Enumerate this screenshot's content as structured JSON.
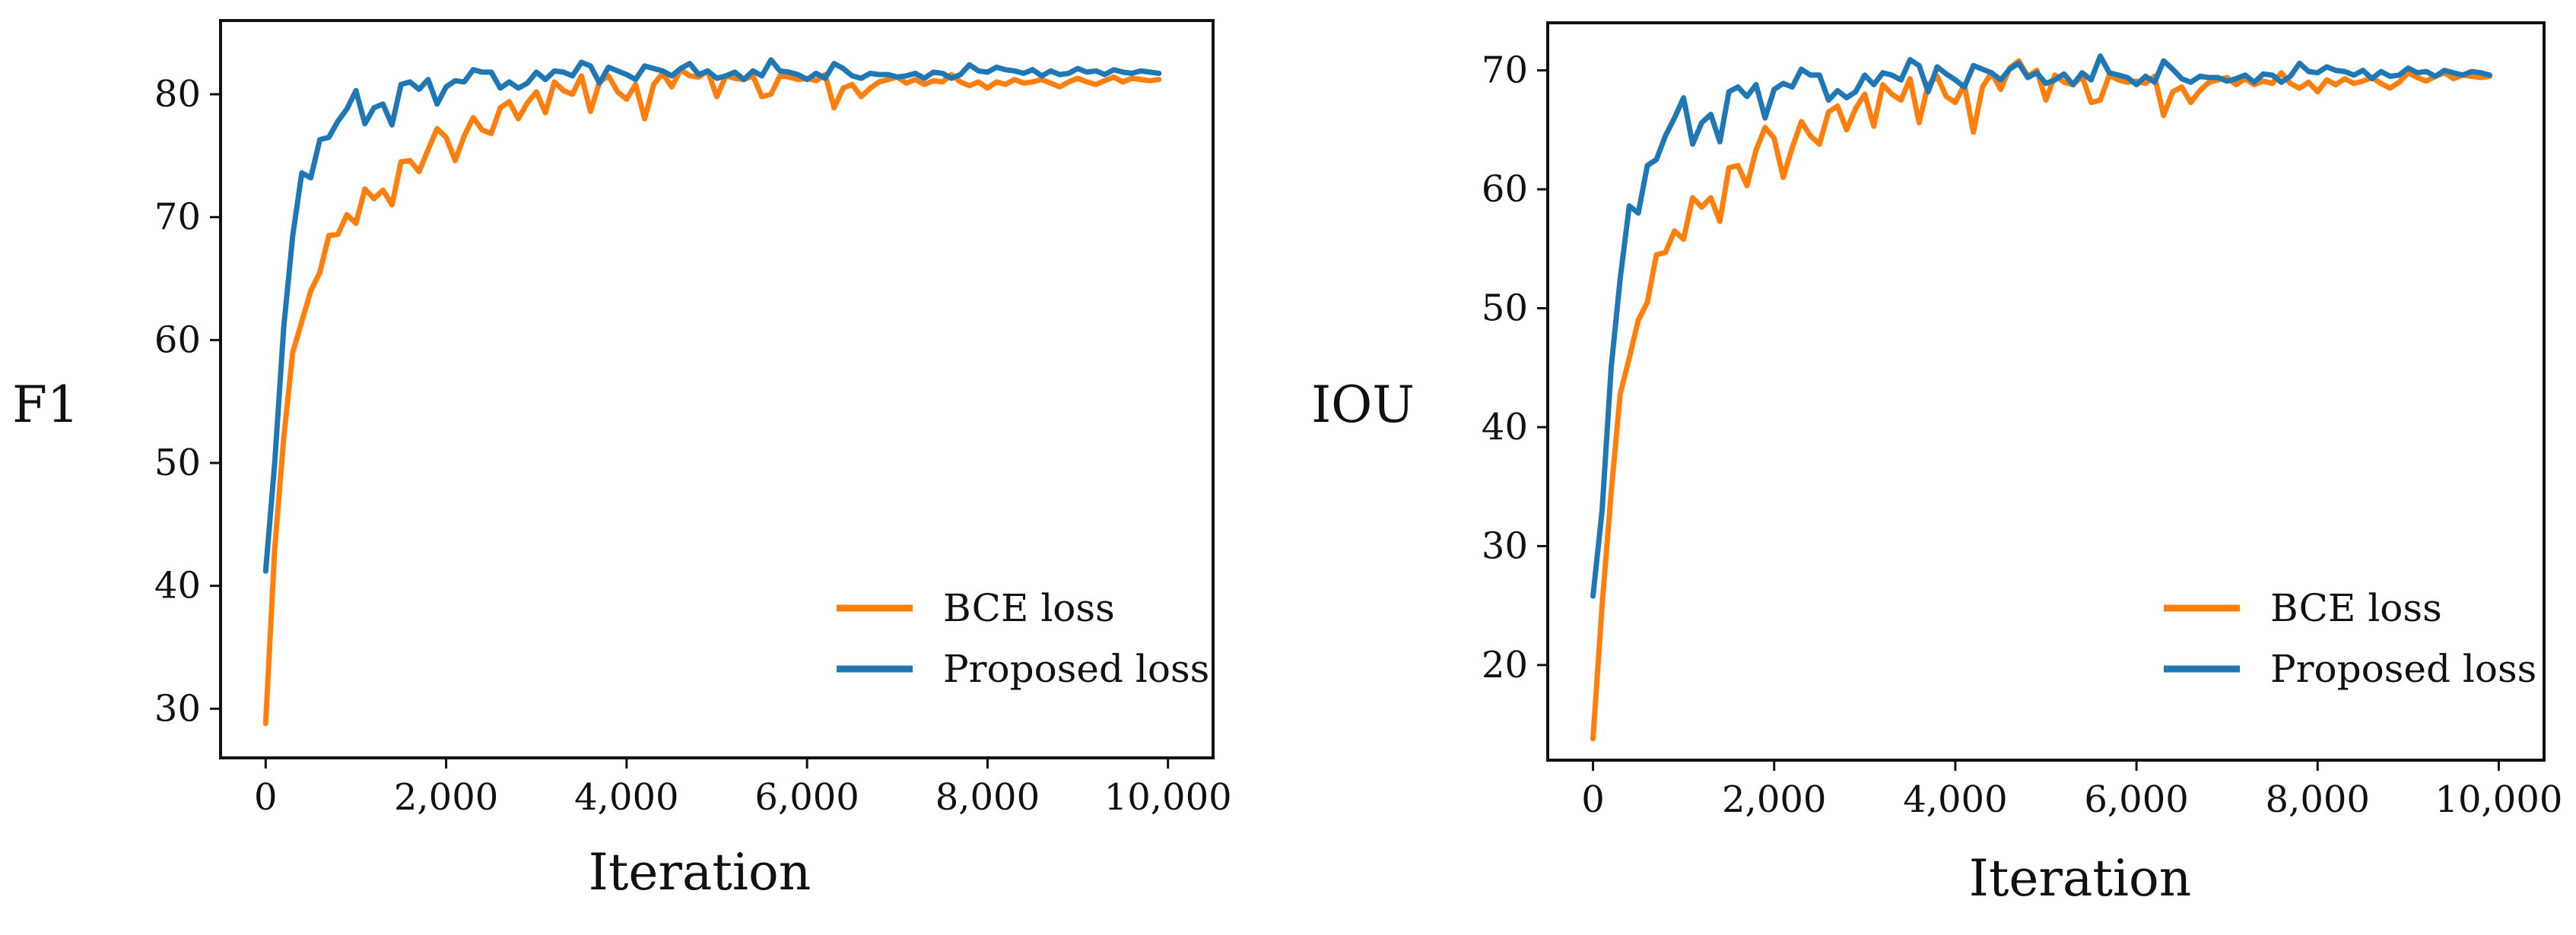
{
  "chart_data": [
    {
      "type": "line",
      "xlabel": "Iteration",
      "ylabel": "F1",
      "xlim": [
        -500,
        10500
      ],
      "ylim": [
        26,
        86
      ],
      "xticks": [
        0,
        2000,
        4000,
        6000,
        8000,
        10000
      ],
      "xtick_labels": [
        "0",
        "2,000",
        "4,000",
        "6,000",
        "8,000",
        "10,000"
      ],
      "yticks": [
        30,
        40,
        50,
        60,
        70,
        80
      ],
      "ytick_labels": [
        "30",
        "40",
        "50",
        "60",
        "70",
        "80"
      ],
      "legend_position": "lower-right",
      "series": [
        {
          "name": "BCE loss",
          "color": "#ff7f0e",
          "x": [
            0,
            100,
            200,
            300,
            400,
            500,
            600,
            700,
            800,
            900,
            1000,
            1100,
            1200,
            1300,
            1400,
            1500,
            1600,
            1700,
            1800,
            1900,
            2000,
            2100,
            2200,
            2300,
            2400,
            2500,
            2600,
            2700,
            2800,
            2900,
            3000,
            3100,
            3200,
            3300,
            3400,
            3500,
            3600,
            3700,
            3800,
            3900,
            4000,
            4100,
            4200,
            4300,
            4400,
            4500,
            4600,
            4700,
            4800,
            4900,
            5000,
            5100,
            5200,
            5300,
            5400,
            5500,
            5600,
            5700,
            5800,
            5900,
            6000,
            6100,
            6200,
            6300,
            6400,
            6500,
            6600,
            6700,
            6800,
            6900,
            7000,
            7100,
            7200,
            7300,
            7400,
            7500,
            7600,
            7700,
            7800,
            7900,
            8000,
            8100,
            8200,
            8300,
            8400,
            8500,
            8600,
            8700,
            8800,
            8900,
            9000,
            9100,
            9200,
            9300,
            9400,
            9500,
            9600,
            9700,
            9800,
            9900
          ],
          "values": [
            28.8,
            43.0,
            52.0,
            59.0,
            61.5,
            64.0,
            65.5,
            68.5,
            68.6,
            70.2,
            69.5,
            72.3,
            71.5,
            72.2,
            71.0,
            74.5,
            74.6,
            73.7,
            75.5,
            77.2,
            76.5,
            74.6,
            76.6,
            78.1,
            77.1,
            76.8,
            78.9,
            79.4,
            78.0,
            79.3,
            80.2,
            78.5,
            81.0,
            80.3,
            80.0,
            81.5,
            78.6,
            81.0,
            81.5,
            80.2,
            79.6,
            80.8,
            78.0,
            80.8,
            81.7,
            80.6,
            82.0,
            81.5,
            81.4,
            81.9,
            79.8,
            81.5,
            81.3,
            81.2,
            81.5,
            79.8,
            80.0,
            81.5,
            81.4,
            81.2,
            81.3,
            81.1,
            81.6,
            78.9,
            80.5,
            80.8,
            79.8,
            80.5,
            81.0,
            81.2,
            81.4,
            80.9,
            81.2,
            80.8,
            81.1,
            81.0,
            81.6,
            81.0,
            80.7,
            81.0,
            80.5,
            81.0,
            80.8,
            81.2,
            80.9,
            81.0,
            81.2,
            80.9,
            80.6,
            81.0,
            81.3,
            81.0,
            80.8,
            81.1,
            81.4,
            81.0,
            81.3,
            81.2,
            81.1,
            81.2
          ]
        },
        {
          "name": "Proposed loss",
          "color": "#1f77b4",
          "x": [
            0,
            100,
            200,
            300,
            400,
            500,
            600,
            700,
            800,
            900,
            1000,
            1100,
            1200,
            1300,
            1400,
            1500,
            1600,
            1700,
            1800,
            1900,
            2000,
            2100,
            2200,
            2300,
            2400,
            2500,
            2600,
            2700,
            2800,
            2900,
            3000,
            3100,
            3200,
            3300,
            3400,
            3500,
            3600,
            3700,
            3800,
            3900,
            4000,
            4100,
            4200,
            4300,
            4400,
            4500,
            4600,
            4700,
            4800,
            4900,
            5000,
            5100,
            5200,
            5300,
            5400,
            5500,
            5600,
            5700,
            5800,
            5900,
            6000,
            6100,
            6200,
            6300,
            6400,
            6500,
            6600,
            6700,
            6800,
            6900,
            7000,
            7100,
            7200,
            7300,
            7400,
            7500,
            7600,
            7700,
            7800,
            7900,
            8000,
            8100,
            8200,
            8300,
            8400,
            8500,
            8600,
            8700,
            8800,
            8900,
            9000,
            9100,
            9200,
            9300,
            9400,
            9500,
            9600,
            9700,
            9800,
            9900
          ],
          "values": [
            41.2,
            50.0,
            61.0,
            68.5,
            73.6,
            73.2,
            76.3,
            76.5,
            77.8,
            78.8,
            80.3,
            77.6,
            78.9,
            79.2,
            77.5,
            80.8,
            81.0,
            80.4,
            81.2,
            79.2,
            80.6,
            81.1,
            81.0,
            82.0,
            81.8,
            81.8,
            80.5,
            81.0,
            80.5,
            80.9,
            81.8,
            81.2,
            81.9,
            81.8,
            81.5,
            82.6,
            82.3,
            80.9,
            82.2,
            81.9,
            81.6,
            81.2,
            82.3,
            82.1,
            81.9,
            81.5,
            82.1,
            82.5,
            81.6,
            81.9,
            81.3,
            81.5,
            81.8,
            81.2,
            81.9,
            81.5,
            82.8,
            81.9,
            81.8,
            81.6,
            81.2,
            81.7,
            81.3,
            82.5,
            82.1,
            81.5,
            81.3,
            81.7,
            81.6,
            81.6,
            81.4,
            81.5,
            81.7,
            81.3,
            81.8,
            81.7,
            81.3,
            81.6,
            82.4,
            81.9,
            81.8,
            82.2,
            82.0,
            81.9,
            81.7,
            82.0,
            81.5,
            81.9,
            81.6,
            81.7,
            82.1,
            81.8,
            81.9,
            81.6,
            82.0,
            81.8,
            81.7,
            81.9,
            81.8,
            81.7
          ]
        }
      ]
    },
    {
      "type": "line",
      "xlabel": "Iteration",
      "ylabel": "IOU",
      "xlim": [
        -500,
        10500
      ],
      "ylim": [
        12,
        74
      ],
      "xticks": [
        0,
        2000,
        4000,
        6000,
        8000,
        10000
      ],
      "xtick_labels": [
        "0",
        "2,000",
        "4,000",
        "6,000",
        "8,000",
        "10,000"
      ],
      "yticks": [
        20,
        30,
        40,
        50,
        60,
        70
      ],
      "ytick_labels": [
        "20",
        "30",
        "40",
        "50",
        "60",
        "70"
      ],
      "legend_position": "lower-right",
      "series": [
        {
          "name": "BCE loss",
          "color": "#ff7f0e",
          "x": [
            0,
            100,
            200,
            300,
            400,
            500,
            600,
            700,
            800,
            900,
            1000,
            1100,
            1200,
            1300,
            1400,
            1500,
            1600,
            1700,
            1800,
            1900,
            2000,
            2100,
            2200,
            2300,
            2400,
            2500,
            2600,
            2700,
            2800,
            2900,
            3000,
            3100,
            3200,
            3300,
            3400,
            3500,
            3600,
            3700,
            3800,
            3900,
            4000,
            4100,
            4200,
            4300,
            4400,
            4500,
            4600,
            4700,
            4800,
            4900,
            5000,
            5100,
            5200,
            5300,
            5400,
            5500,
            5600,
            5700,
            5800,
            5900,
            6000,
            6100,
            6200,
            6300,
            6400,
            6500,
            6600,
            6700,
            6800,
            6900,
            7000,
            7100,
            7200,
            7300,
            7400,
            7500,
            7600,
            7700,
            7800,
            7900,
            8000,
            8100,
            8200,
            8300,
            8400,
            8500,
            8600,
            8700,
            8800,
            8900,
            9000,
            9100,
            9200,
            9300,
            9400,
            9500,
            9600,
            9700,
            9800,
            9900
          ],
          "values": [
            13.8,
            25.0,
            34.5,
            42.8,
            45.8,
            49.0,
            50.5,
            54.5,
            54.7,
            56.5,
            55.8,
            59.3,
            58.5,
            59.3,
            57.3,
            61.8,
            62.0,
            60.3,
            63.3,
            65.2,
            64.3,
            61.0,
            63.5,
            65.7,
            64.5,
            63.8,
            66.5,
            67.0,
            65.0,
            66.8,
            68.0,
            65.3,
            68.8,
            68.0,
            67.5,
            69.3,
            65.6,
            68.8,
            69.5,
            67.8,
            67.3,
            68.8,
            64.8,
            68.6,
            69.8,
            68.4,
            70.2,
            70.8,
            69.5,
            70.0,
            67.5,
            69.6,
            69.0,
            68.8,
            69.5,
            67.3,
            67.5,
            69.6,
            69.2,
            69.0,
            69.1,
            68.9,
            69.5,
            66.2,
            68.2,
            68.6,
            67.3,
            68.3,
            69.0,
            69.2,
            69.4,
            68.8,
            69.3,
            68.8,
            69.1,
            68.9,
            69.8,
            68.9,
            68.5,
            69.0,
            68.2,
            69.2,
            68.8,
            69.3,
            68.9,
            69.1,
            69.4,
            68.9,
            68.5,
            69.0,
            69.8,
            69.4,
            69.1,
            69.5,
            69.8,
            69.3,
            69.6,
            69.5,
            69.4,
            69.5
          ]
        },
        {
          "name": "Proposed loss",
          "color": "#1f77b4",
          "x": [
            0,
            100,
            200,
            300,
            400,
            500,
            600,
            700,
            800,
            900,
            1000,
            1100,
            1200,
            1300,
            1400,
            1500,
            1600,
            1700,
            1800,
            1900,
            2000,
            2100,
            2200,
            2300,
            2400,
            2500,
            2600,
            2700,
            2800,
            2900,
            3000,
            3100,
            3200,
            3300,
            3400,
            3500,
            3600,
            3700,
            3800,
            3900,
            4000,
            4100,
            4200,
            4300,
            4400,
            4500,
            4600,
            4700,
            4800,
            4900,
            5000,
            5100,
            5200,
            5300,
            5400,
            5500,
            5600,
            5700,
            5800,
            5900,
            6000,
            6100,
            6200,
            6300,
            6400,
            6500,
            6600,
            6700,
            6800,
            6900,
            7000,
            7100,
            7200,
            7300,
            7400,
            7500,
            7600,
            7700,
            7800,
            7900,
            8000,
            8100,
            8200,
            8300,
            8400,
            8500,
            8600,
            8700,
            8800,
            8900,
            9000,
            9100,
            9200,
            9300,
            9400,
            9500,
            9600,
            9700,
            9800,
            9900
          ],
          "values": [
            25.8,
            33.0,
            45.0,
            52.5,
            58.6,
            58.0,
            62.0,
            62.5,
            64.5,
            66.0,
            67.7,
            63.8,
            65.6,
            66.3,
            64.0,
            68.2,
            68.6,
            67.8,
            68.8,
            66.0,
            68.4,
            68.9,
            68.6,
            70.1,
            69.6,
            69.6,
            67.5,
            68.3,
            67.7,
            68.2,
            69.6,
            68.8,
            69.8,
            69.6,
            69.2,
            70.9,
            70.4,
            68.2,
            70.3,
            69.7,
            69.2,
            68.6,
            70.4,
            70.1,
            69.8,
            69.2,
            70.1,
            70.6,
            69.4,
            69.8,
            68.9,
            69.2,
            69.7,
            68.8,
            69.8,
            69.2,
            71.2,
            69.8,
            69.6,
            69.4,
            68.8,
            69.5,
            69.0,
            70.8,
            70.1,
            69.3,
            69.0,
            69.5,
            69.4,
            69.4,
            69.1,
            69.3,
            69.6,
            69.0,
            69.7,
            69.6,
            69.0,
            69.5,
            70.6,
            69.9,
            69.8,
            70.3,
            70.0,
            69.9,
            69.6,
            70.0,
            69.3,
            69.9,
            69.5,
            69.6,
            70.2,
            69.8,
            69.9,
            69.5,
            70.0,
            69.8,
            69.6,
            69.9,
            69.8,
            69.6
          ]
        }
      ]
    }
  ]
}
